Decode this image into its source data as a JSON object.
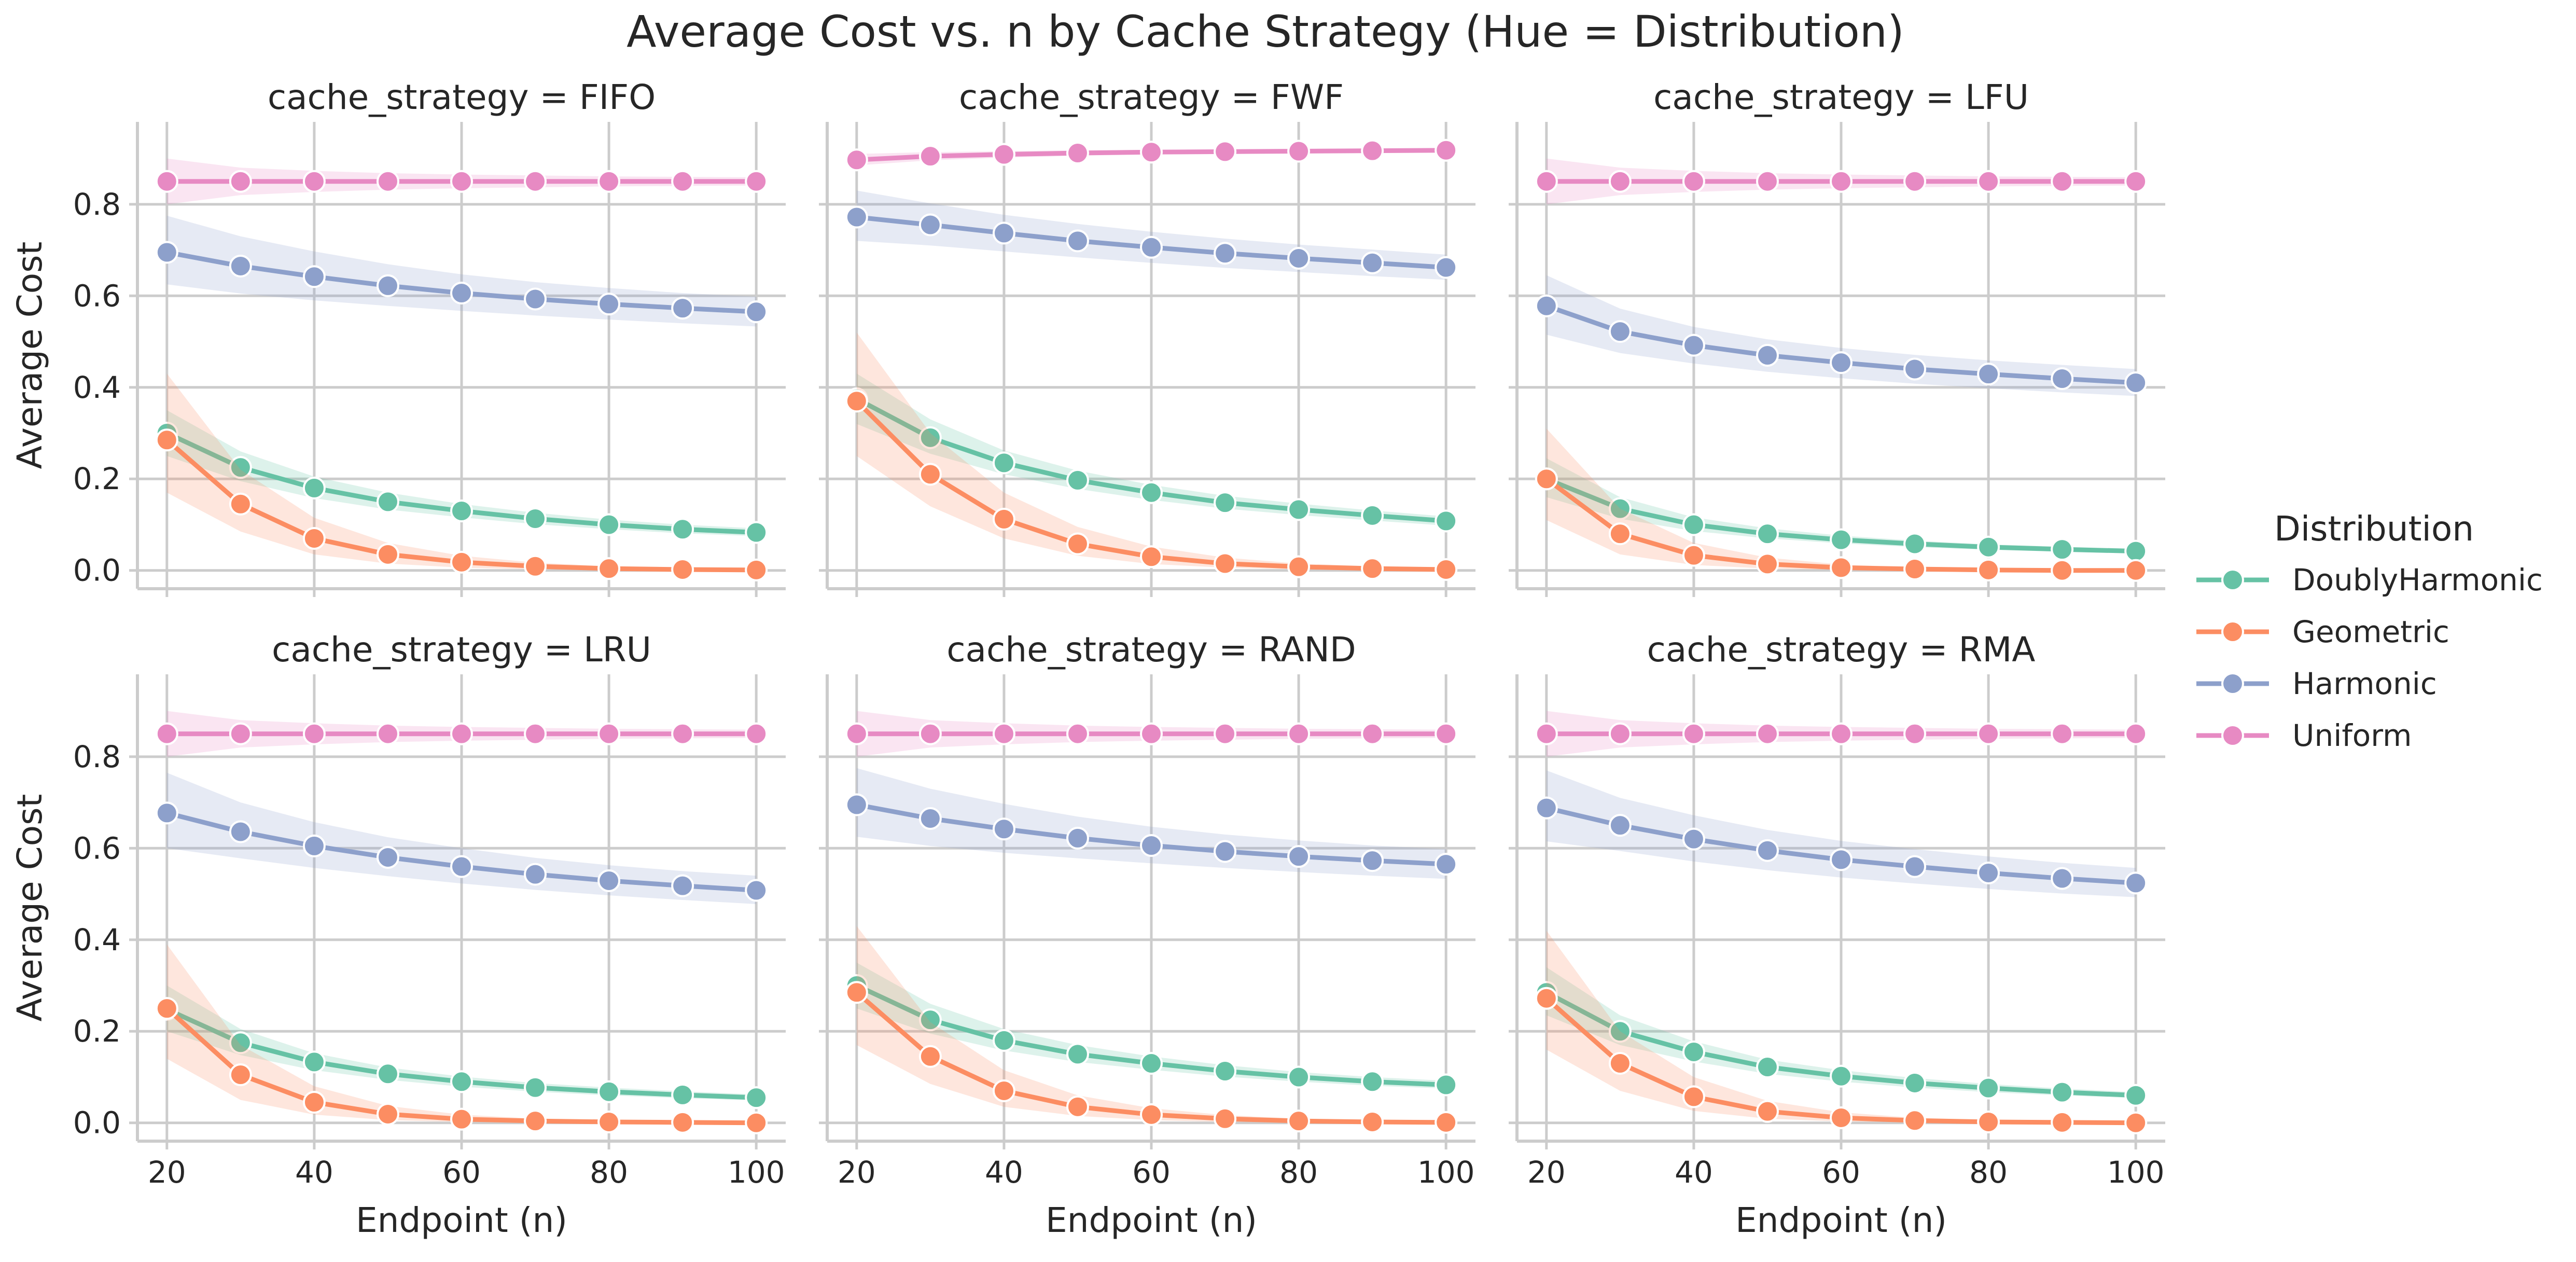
{
  "figure": {
    "title": "Average Cost vs. n by Cache Strategy (Hue = Distribution)"
  },
  "legend": {
    "title": "Distribution",
    "placement": "right",
    "entries": [
      "DoublyHarmonic",
      "Geometric",
      "Harmonic",
      "Uniform"
    ]
  },
  "colors": {
    "DoublyHarmonic": "#66c2a5",
    "Geometric": "#fc8d62",
    "Harmonic": "#8da0cb",
    "Uniform": "#e78ac3",
    "grid": "#cccccc",
    "text": "#262626"
  },
  "chart_data": [
    {
      "type": "line",
      "title": "cache_strategy = FIFO",
      "xlabel": "",
      "ylabel": "Average Cost",
      "x": [
        20,
        30,
        40,
        50,
        60,
        70,
        80,
        90,
        100
      ],
      "xlim": [
        16,
        104
      ],
      "ylim": [
        -0.04,
        0.98
      ],
      "xticks": [
        "20",
        "40",
        "60",
        "80",
        "100"
      ],
      "yticks": [
        "0.0",
        "0.2",
        "0.4",
        "0.6",
        "0.8"
      ],
      "grid": true,
      "series": [
        {
          "name": "DoublyHarmonic",
          "values": [
            0.3,
            0.225,
            0.18,
            0.15,
            0.13,
            0.113,
            0.1,
            0.09,
            0.083
          ],
          "lower": [
            0.25,
            0.195,
            0.158,
            0.133,
            0.116,
            0.101,
            0.09,
            0.081,
            0.075
          ],
          "upper": [
            0.35,
            0.26,
            0.205,
            0.17,
            0.145,
            0.126,
            0.111,
            0.1,
            0.092
          ]
        },
        {
          "name": "Geometric",
          "values": [
            0.285,
            0.145,
            0.07,
            0.035,
            0.018,
            0.009,
            0.004,
            0.002,
            0.001
          ],
          "lower": [
            0.17,
            0.085,
            0.035,
            0.015,
            0.006,
            0.002,
            0.0,
            0.0,
            0.0
          ],
          "upper": [
            0.43,
            0.22,
            0.115,
            0.06,
            0.032,
            0.017,
            0.009,
            0.005,
            0.003
          ]
        },
        {
          "name": "Harmonic",
          "values": [
            0.695,
            0.665,
            0.642,
            0.622,
            0.606,
            0.593,
            0.582,
            0.573,
            0.565
          ],
          "lower": [
            0.625,
            0.605,
            0.59,
            0.578,
            0.567,
            0.557,
            0.548,
            0.54,
            0.533
          ],
          "upper": [
            0.775,
            0.73,
            0.697,
            0.669,
            0.647,
            0.63,
            0.617,
            0.606,
            0.598
          ]
        },
        {
          "name": "Uniform",
          "values": [
            0.85,
            0.85,
            0.85,
            0.85,
            0.85,
            0.85,
            0.85,
            0.85,
            0.85
          ],
          "lower": [
            0.8,
            0.82,
            0.827,
            0.832,
            0.835,
            0.837,
            0.839,
            0.84,
            0.841
          ],
          "upper": [
            0.9,
            0.88,
            0.873,
            0.868,
            0.865,
            0.863,
            0.861,
            0.86,
            0.859
          ]
        }
      ]
    },
    {
      "type": "line",
      "title": "cache_strategy = FWF",
      "xlabel": "",
      "ylabel": "",
      "x": [
        20,
        30,
        40,
        50,
        60,
        70,
        80,
        90,
        100
      ],
      "xlim": [
        16,
        104
      ],
      "ylim": [
        -0.04,
        0.98
      ],
      "xticks": [
        "20",
        "40",
        "60",
        "80",
        "100"
      ],
      "yticks": [
        "0.0",
        "0.2",
        "0.4",
        "0.6",
        "0.8"
      ],
      "grid": true,
      "series": [
        {
          "name": "DoublyHarmonic",
          "values": [
            0.375,
            0.29,
            0.235,
            0.197,
            0.17,
            0.148,
            0.133,
            0.12,
            0.108
          ],
          "lower": [
            0.32,
            0.255,
            0.21,
            0.178,
            0.154,
            0.135,
            0.121,
            0.109,
            0.098
          ],
          "upper": [
            0.43,
            0.33,
            0.262,
            0.218,
            0.187,
            0.163,
            0.146,
            0.131,
            0.118
          ]
        },
        {
          "name": "Geometric",
          "values": [
            0.37,
            0.21,
            0.112,
            0.058,
            0.03,
            0.015,
            0.008,
            0.004,
            0.002
          ],
          "lower": [
            0.25,
            0.14,
            0.07,
            0.032,
            0.014,
            0.006,
            0.002,
            0.0,
            0.0
          ],
          "upper": [
            0.52,
            0.3,
            0.17,
            0.095,
            0.052,
            0.028,
            0.015,
            0.009,
            0.005
          ]
        },
        {
          "name": "Harmonic",
          "values": [
            0.772,
            0.755,
            0.737,
            0.72,
            0.706,
            0.693,
            0.682,
            0.672,
            0.662
          ],
          "lower": [
            0.72,
            0.71,
            0.697,
            0.684,
            0.672,
            0.661,
            0.652,
            0.643,
            0.635
          ],
          "upper": [
            0.83,
            0.802,
            0.777,
            0.757,
            0.74,
            0.725,
            0.712,
            0.701,
            0.69
          ]
        },
        {
          "name": "Uniform",
          "values": [
            0.897,
            0.905,
            0.909,
            0.912,
            0.914,
            0.915,
            0.916,
            0.917,
            0.918
          ],
          "lower": [
            0.885,
            0.896,
            0.902,
            0.906,
            0.909,
            0.911,
            0.912,
            0.913,
            0.914
          ],
          "upper": [
            0.91,
            0.914,
            0.916,
            0.918,
            0.919,
            0.92,
            0.921,
            0.921,
            0.922
          ]
        }
      ]
    },
    {
      "type": "line",
      "title": "cache_strategy = LFU",
      "xlabel": "",
      "ylabel": "",
      "x": [
        20,
        30,
        40,
        50,
        60,
        70,
        80,
        90,
        100
      ],
      "xlim": [
        16,
        104
      ],
      "ylim": [
        -0.04,
        0.98
      ],
      "xticks": [
        "20",
        "40",
        "60",
        "80",
        "100"
      ],
      "yticks": [
        "0.0",
        "0.2",
        "0.4",
        "0.6",
        "0.8"
      ],
      "grid": true,
      "series": [
        {
          "name": "DoublyHarmonic",
          "values": [
            0.2,
            0.135,
            0.1,
            0.08,
            0.067,
            0.058,
            0.051,
            0.046,
            0.042
          ],
          "lower": [
            0.16,
            0.113,
            0.086,
            0.07,
            0.059,
            0.051,
            0.045,
            0.041,
            0.037
          ],
          "upper": [
            0.245,
            0.16,
            0.116,
            0.092,
            0.076,
            0.065,
            0.057,
            0.052,
            0.047
          ]
        },
        {
          "name": "Geometric",
          "values": [
            0.2,
            0.08,
            0.033,
            0.014,
            0.006,
            0.003,
            0.001,
            0.0,
            0.0
          ],
          "lower": [
            0.11,
            0.035,
            0.012,
            0.004,
            0.001,
            0.0,
            0.0,
            0.0,
            0.0
          ],
          "upper": [
            0.31,
            0.135,
            0.06,
            0.028,
            0.013,
            0.006,
            0.003,
            0.002,
            0.001
          ]
        },
        {
          "name": "Harmonic",
          "values": [
            0.578,
            0.522,
            0.492,
            0.47,
            0.454,
            0.44,
            0.429,
            0.419,
            0.41
          ],
          "lower": [
            0.515,
            0.475,
            0.452,
            0.434,
            0.42,
            0.408,
            0.398,
            0.389,
            0.381
          ],
          "upper": [
            0.645,
            0.572,
            0.532,
            0.505,
            0.486,
            0.471,
            0.459,
            0.449,
            0.44
          ]
        },
        {
          "name": "Uniform",
          "values": [
            0.85,
            0.85,
            0.85,
            0.85,
            0.85,
            0.85,
            0.85,
            0.85,
            0.85
          ],
          "lower": [
            0.8,
            0.82,
            0.827,
            0.832,
            0.835,
            0.837,
            0.839,
            0.84,
            0.841
          ],
          "upper": [
            0.9,
            0.88,
            0.873,
            0.868,
            0.865,
            0.863,
            0.861,
            0.86,
            0.859
          ]
        }
      ]
    },
    {
      "type": "line",
      "title": "cache_strategy = LRU",
      "xlabel": "Endpoint (n)",
      "ylabel": "Average Cost",
      "x": [
        20,
        30,
        40,
        50,
        60,
        70,
        80,
        90,
        100
      ],
      "xlim": [
        16,
        104
      ],
      "ylim": [
        -0.04,
        0.98
      ],
      "xticks": [
        "20",
        "40",
        "60",
        "80",
        "100"
      ],
      "yticks": [
        "0.0",
        "0.2",
        "0.4",
        "0.6",
        "0.8"
      ],
      "grid": true,
      "series": [
        {
          "name": "DoublyHarmonic",
          "values": [
            0.248,
            0.175,
            0.133,
            0.107,
            0.09,
            0.077,
            0.068,
            0.061,
            0.055
          ],
          "lower": [
            0.2,
            0.148,
            0.115,
            0.094,
            0.079,
            0.068,
            0.06,
            0.054,
            0.049
          ],
          "upper": [
            0.3,
            0.205,
            0.152,
            0.121,
            0.101,
            0.087,
            0.077,
            0.069,
            0.062
          ]
        },
        {
          "name": "Geometric",
          "values": [
            0.25,
            0.105,
            0.045,
            0.019,
            0.008,
            0.004,
            0.002,
            0.001,
            0.0
          ],
          "lower": [
            0.14,
            0.05,
            0.018,
            0.006,
            0.002,
            0.0,
            0.0,
            0.0,
            0.0
          ],
          "upper": [
            0.39,
            0.17,
            0.08,
            0.037,
            0.018,
            0.009,
            0.005,
            0.003,
            0.002
          ]
        },
        {
          "name": "Harmonic",
          "values": [
            0.677,
            0.636,
            0.605,
            0.58,
            0.56,
            0.543,
            0.529,
            0.518,
            0.508
          ],
          "lower": [
            0.6,
            0.578,
            0.557,
            0.539,
            0.523,
            0.509,
            0.497,
            0.487,
            0.478
          ],
          "upper": [
            0.765,
            0.7,
            0.657,
            0.624,
            0.6,
            0.579,
            0.563,
            0.55,
            0.54
          ]
        },
        {
          "name": "Uniform",
          "values": [
            0.85,
            0.85,
            0.85,
            0.85,
            0.85,
            0.85,
            0.85,
            0.85,
            0.85
          ],
          "lower": [
            0.8,
            0.82,
            0.827,
            0.832,
            0.835,
            0.837,
            0.839,
            0.84,
            0.841
          ],
          "upper": [
            0.9,
            0.88,
            0.873,
            0.868,
            0.865,
            0.863,
            0.861,
            0.86,
            0.859
          ]
        }
      ]
    },
    {
      "type": "line",
      "title": "cache_strategy = RAND",
      "xlabel": "Endpoint (n)",
      "ylabel": "",
      "x": [
        20,
        30,
        40,
        50,
        60,
        70,
        80,
        90,
        100
      ],
      "xlim": [
        16,
        104
      ],
      "ylim": [
        -0.04,
        0.98
      ],
      "xticks": [
        "20",
        "40",
        "60",
        "80",
        "100"
      ],
      "yticks": [
        "0.0",
        "0.2",
        "0.4",
        "0.6",
        "0.8"
      ],
      "grid": true,
      "series": [
        {
          "name": "DoublyHarmonic",
          "values": [
            0.3,
            0.225,
            0.18,
            0.15,
            0.13,
            0.113,
            0.1,
            0.09,
            0.083
          ],
          "lower": [
            0.25,
            0.195,
            0.158,
            0.133,
            0.116,
            0.101,
            0.09,
            0.081,
            0.075
          ],
          "upper": [
            0.35,
            0.26,
            0.205,
            0.17,
            0.145,
            0.126,
            0.111,
            0.1,
            0.092
          ]
        },
        {
          "name": "Geometric",
          "values": [
            0.285,
            0.145,
            0.07,
            0.035,
            0.018,
            0.009,
            0.004,
            0.002,
            0.001
          ],
          "lower": [
            0.17,
            0.085,
            0.035,
            0.015,
            0.006,
            0.002,
            0.0,
            0.0,
            0.0
          ],
          "upper": [
            0.43,
            0.22,
            0.115,
            0.06,
            0.032,
            0.017,
            0.009,
            0.005,
            0.003
          ]
        },
        {
          "name": "Harmonic",
          "values": [
            0.695,
            0.665,
            0.642,
            0.622,
            0.606,
            0.593,
            0.582,
            0.573,
            0.565
          ],
          "lower": [
            0.625,
            0.605,
            0.59,
            0.578,
            0.567,
            0.557,
            0.548,
            0.54,
            0.533
          ],
          "upper": [
            0.775,
            0.73,
            0.697,
            0.669,
            0.647,
            0.63,
            0.617,
            0.606,
            0.598
          ]
        },
        {
          "name": "Uniform",
          "values": [
            0.85,
            0.85,
            0.85,
            0.85,
            0.85,
            0.85,
            0.85,
            0.85,
            0.85
          ],
          "lower": [
            0.8,
            0.82,
            0.827,
            0.832,
            0.835,
            0.837,
            0.839,
            0.84,
            0.841
          ],
          "upper": [
            0.9,
            0.88,
            0.873,
            0.868,
            0.865,
            0.863,
            0.861,
            0.86,
            0.859
          ]
        }
      ]
    },
    {
      "type": "line",
      "title": "cache_strategy = RMA",
      "xlabel": "Endpoint (n)",
      "ylabel": "",
      "x": [
        20,
        30,
        40,
        50,
        60,
        70,
        80,
        90,
        100
      ],
      "xlim": [
        16,
        104
      ],
      "ylim": [
        -0.04,
        0.98
      ],
      "xticks": [
        "20",
        "40",
        "60",
        "80",
        "100"
      ],
      "yticks": [
        "0.0",
        "0.2",
        "0.4",
        "0.6",
        "0.8"
      ],
      "grid": true,
      "series": [
        {
          "name": "DoublyHarmonic",
          "values": [
            0.285,
            0.2,
            0.155,
            0.122,
            0.102,
            0.087,
            0.076,
            0.067,
            0.06
          ],
          "lower": [
            0.235,
            0.17,
            0.134,
            0.107,
            0.09,
            0.077,
            0.067,
            0.06,
            0.054
          ],
          "upper": [
            0.34,
            0.235,
            0.178,
            0.138,
            0.115,
            0.098,
            0.085,
            0.075,
            0.067
          ]
        },
        {
          "name": "Geometric",
          "values": [
            0.272,
            0.13,
            0.057,
            0.025,
            0.011,
            0.005,
            0.002,
            0.001,
            0.0
          ],
          "lower": [
            0.16,
            0.07,
            0.026,
            0.009,
            0.003,
            0.001,
            0.0,
            0.0,
            0.0
          ],
          "upper": [
            0.42,
            0.2,
            0.1,
            0.048,
            0.023,
            0.011,
            0.006,
            0.003,
            0.002
          ]
        },
        {
          "name": "Harmonic",
          "values": [
            0.688,
            0.65,
            0.62,
            0.595,
            0.575,
            0.56,
            0.546,
            0.534,
            0.524
          ],
          "lower": [
            0.615,
            0.594,
            0.571,
            0.552,
            0.536,
            0.523,
            0.511,
            0.501,
            0.493
          ],
          "upper": [
            0.77,
            0.71,
            0.672,
            0.64,
            0.616,
            0.598,
            0.582,
            0.568,
            0.557
          ]
        },
        {
          "name": "Uniform",
          "values": [
            0.85,
            0.85,
            0.85,
            0.85,
            0.85,
            0.85,
            0.85,
            0.85,
            0.85
          ],
          "lower": [
            0.8,
            0.82,
            0.827,
            0.832,
            0.835,
            0.837,
            0.839,
            0.84,
            0.841
          ],
          "upper": [
            0.9,
            0.88,
            0.873,
            0.868,
            0.865,
            0.863,
            0.861,
            0.86,
            0.859
          ]
        }
      ]
    }
  ]
}
